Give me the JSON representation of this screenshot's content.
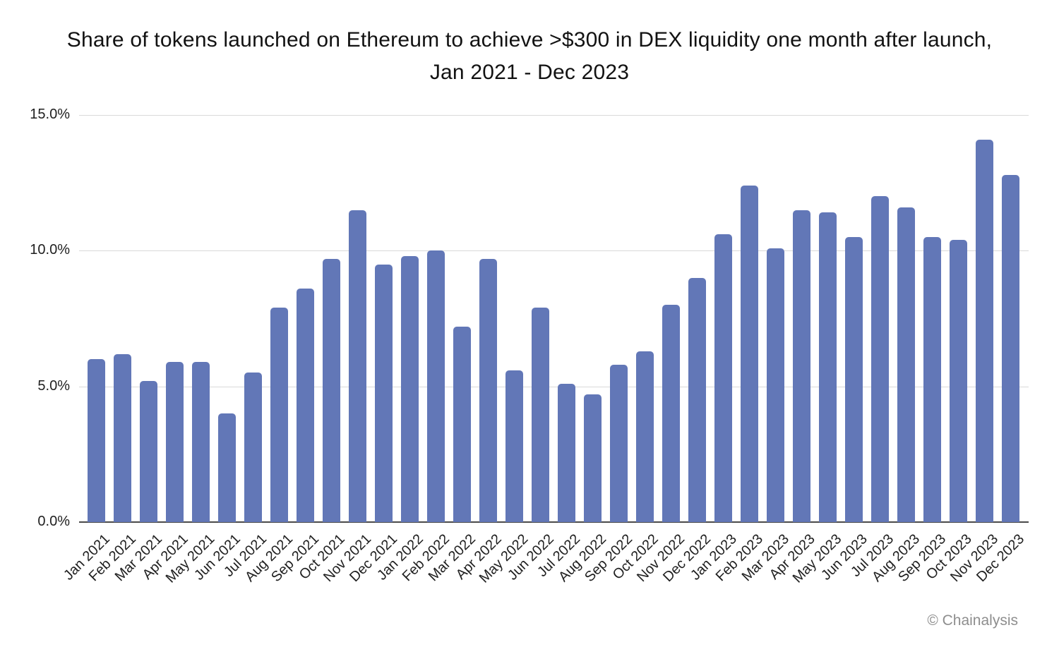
{
  "title": {
    "line1": "Share of tokens launched on Ethereum to achieve >$300 in DEX liquidity one month after launch,",
    "line2": "Jan 2021 - Dec 2023"
  },
  "footer": {
    "copyright": "© Chainalysis"
  },
  "colors": {
    "bar": "#6277b7",
    "gridline": "#d9d9d9",
    "axis_line": "#4a4a4a",
    "text": "#1f1f1f",
    "muted": "#8e8e8e",
    "background": "#ffffff"
  },
  "chart_data": {
    "type": "bar",
    "title": "Share of tokens launched on Ethereum to achieve >$300 in DEX liquidity one month after launch, Jan 2021 - Dec 2023",
    "xlabel": "",
    "ylabel": "",
    "ylim": [
      0,
      15
    ],
    "grid": "horizontal",
    "legend": "none",
    "y_ticks": [
      {
        "value": 15,
        "label": "15.0%"
      },
      {
        "value": 10,
        "label": "10.0%"
      },
      {
        "value": 5,
        "label": "5.0%"
      },
      {
        "value": 0,
        "label": "0.0%"
      }
    ],
    "categories": [
      "Jan 2021",
      "Feb 2021",
      "Mar 2021",
      "Apr 2021",
      "May 2021",
      "Jun 2021",
      "Jul 2021",
      "Aug 2021",
      "Sep 2021",
      "Oct 2021",
      "Nov 2021",
      "Dec 2021",
      "Jan 2022",
      "Feb 2022",
      "Mar 2022",
      "Apr 2022",
      "May 2022",
      "Jun 2022",
      "Jul 2022",
      "Aug 2022",
      "Sep 2022",
      "Oct 2022",
      "Nov 2022",
      "Dec 2022",
      "Jan 2023",
      "Feb 2023",
      "Mar 2023",
      "Apr 2023",
      "May 2023",
      "Jun 2023",
      "Jul 2023",
      "Aug 2023",
      "Sep 2023",
      "Oct 2023",
      "Nov 2023",
      "Dec 2023"
    ],
    "values": [
      6.0,
      6.2,
      5.2,
      5.9,
      5.9,
      4.0,
      5.5,
      7.9,
      8.6,
      9.7,
      11.5,
      9.5,
      9.8,
      10.0,
      7.2,
      9.7,
      5.6,
      7.9,
      5.1,
      4.7,
      5.8,
      6.3,
      8.0,
      9.0,
      10.6,
      12.4,
      10.1,
      11.5,
      11.4,
      10.5,
      12.0,
      11.6,
      10.5,
      10.4,
      14.1,
      12.8
    ],
    "values_unit": "%"
  }
}
